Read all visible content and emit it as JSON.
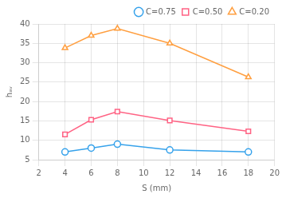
{
  "chart_data": {
    "type": "line",
    "x": [
      4,
      6,
      8,
      12,
      18
    ],
    "series": [
      {
        "name": "C=0.75",
        "marker": "circle",
        "values": [
          7.0,
          8.0,
          9.0,
          7.5,
          7.0
        ]
      },
      {
        "name": "C=0.50",
        "marker": "square",
        "values": [
          11.5,
          15.3,
          17.4,
          15.1,
          12.3
        ]
      },
      {
        "name": "C=0.20",
        "marker": "triangle",
        "values": [
          33.8,
          37.0,
          38.8,
          35.0,
          26.3
        ]
      }
    ],
    "xlabel": "S (mm)",
    "ylabel": "hₐᵥ",
    "xlim": [
      2,
      20
    ],
    "ylim": [
      5,
      40
    ],
    "xticks": [
      2,
      4,
      6,
      8,
      10,
      12,
      14,
      16,
      18,
      20
    ],
    "yticks": [
      5,
      10,
      15,
      20,
      25,
      30,
      35,
      40
    ],
    "grid": true,
    "legend": "upper right"
  }
}
